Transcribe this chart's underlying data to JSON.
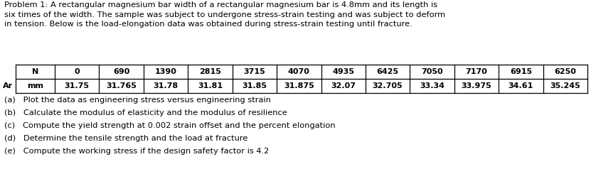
{
  "title_text": "Problem 1: A rectangular magnesium bar width of a rectangular magnesium bar is 4.8mm and its length is\nsix times of the width. The sample was subject to undergone stress-strain testing and was subject to deform\nin tension. Below is the load-elongation data was obtained during stress-strain testing until fracture.",
  "table_header_row": [
    "N",
    "0",
    "690",
    "1390",
    "2815",
    "3715",
    "4070",
    "4935",
    "6425",
    "7050",
    "7170",
    "6915",
    "6250"
  ],
  "table_row1_label": "mm",
  "table_row1_prefix": "Ar",
  "table_row1_values": [
    "31.75",
    "31.765",
    "31.78",
    "31.81",
    "31.85",
    "31.875",
    "32.07",
    "32.705",
    "33.34",
    "33.975",
    "34.61",
    "35.245"
  ],
  "questions": [
    "(a)   Plot the data as engineering stress versus engineering strain",
    "(b)   Calculate the modulus of elasticity and the modulus of resilience",
    "(c)   Compute the yield strength at 0.002 strain offset and the percent elongation",
    "(d)   Determine the tensile strength and the load at fracture",
    "(e)   Compute the working stress if the design safety factor is 4.2"
  ],
  "bg_color": "#ffffff",
  "text_color": "#000000",
  "font_size_title": 8.2,
  "font_size_table": 8.0,
  "font_size_questions": 8.2
}
